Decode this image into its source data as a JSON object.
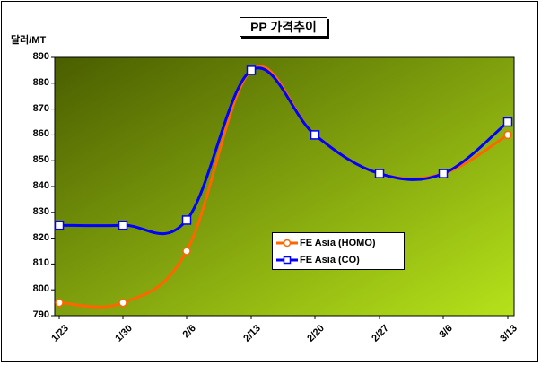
{
  "chart_data": {
    "type": "line",
    "title": "PP 가격추이",
    "ylabel": "달러/MT",
    "categories": [
      "1/23",
      "1/30",
      "2/6",
      "2/13",
      "2/20",
      "2/27",
      "3/6",
      "3/13"
    ],
    "y_ticks": [
      "790",
      "800",
      "810",
      "820",
      "830",
      "840",
      "850",
      "860",
      "870",
      "880",
      "890"
    ],
    "ylim": [
      790,
      890
    ],
    "grid": false,
    "legend_position": "inside-lower-right",
    "series": [
      {
        "name": "FE Asia (HOMO)",
        "values": [
          795,
          795,
          815,
          885,
          860,
          845,
          845,
          860
        ],
        "color": "#ff6600",
        "marker": "circle"
      },
      {
        "name": "FE Asia (CO)",
        "values": [
          825,
          825,
          827,
          885,
          860,
          845,
          845,
          865
        ],
        "color": "#0000ff",
        "marker": "square"
      }
    ],
    "plot_background": {
      "gradient_dark": "#4a5e00",
      "gradient_light": "#b5e21a"
    }
  }
}
